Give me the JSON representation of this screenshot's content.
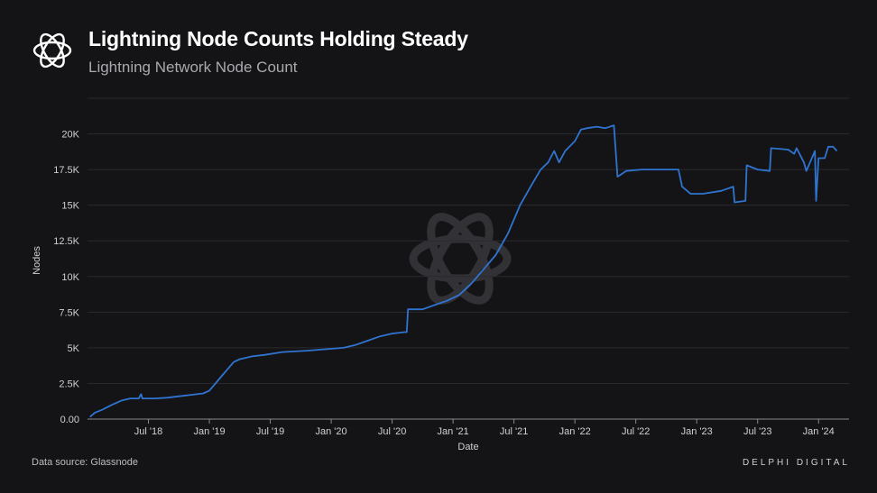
{
  "header": {
    "title": "Lightning Node Counts Holding Steady",
    "subtitle": "Lightning Network Node Count"
  },
  "footer": {
    "source": "Data source: Glassnode",
    "brand": "DELPHI DIGITAL"
  },
  "colors": {
    "line": "#2f74d0",
    "background": "#141416",
    "grid": "#2a2a2e"
  },
  "chart_data": {
    "type": "line",
    "title": "Lightning Network Node Count",
    "xlabel": "Date",
    "ylabel": "Nodes",
    "ylim": [
      0,
      22500
    ],
    "xlim": [
      2018.0,
      2024.25
    ],
    "yticks": [
      0,
      2500,
      5000,
      7500,
      10000,
      12500,
      15000,
      17500,
      20000
    ],
    "ytick_labels": [
      "0.00",
      "2.5K",
      "5K",
      "7.5K",
      "10K",
      "12.5K",
      "15K",
      "17.5K",
      "20K"
    ],
    "xticks": [
      2018.5,
      2019.0,
      2019.5,
      2020.0,
      2020.5,
      2021.0,
      2021.5,
      2022.0,
      2022.5,
      2023.0,
      2023.5,
      2024.0
    ],
    "xtick_labels": [
      "Jul '18",
      "Jan '19",
      "Jul '19",
      "Jan '20",
      "Jul '20",
      "Jan '21",
      "Jul '21",
      "Jan '22",
      "Jul '22",
      "Jan '23",
      "Jul '23",
      "Jan '24"
    ],
    "series": [
      {
        "name": "Lightning Network Node Count",
        "x": [
          2018.02,
          2018.06,
          2018.12,
          2018.2,
          2018.28,
          2018.35,
          2018.42,
          2018.44,
          2018.45,
          2018.55,
          2018.65,
          2018.75,
          2018.85,
          2018.95,
          2019.0,
          2019.05,
          2019.1,
          2019.15,
          2019.2,
          2019.25,
          2019.3,
          2019.35,
          2019.45,
          2019.6,
          2019.8,
          2019.95,
          2020.1,
          2020.2,
          2020.3,
          2020.4,
          2020.5,
          2020.6,
          2020.62,
          2020.63,
          2020.75,
          2020.85,
          2020.95,
          2021.05,
          2021.15,
          2021.25,
          2021.35,
          2021.45,
          2021.55,
          2021.65,
          2021.72,
          2021.78,
          2021.83,
          2021.87,
          2021.92,
          2022.0,
          2022.05,
          2022.1,
          2022.18,
          2022.25,
          2022.32,
          2022.35,
          2022.37,
          2022.42,
          2022.55,
          2022.7,
          2022.8,
          2022.85,
          2022.88,
          2022.95,
          2023.05,
          2023.2,
          2023.3,
          2023.31,
          2023.4,
          2023.41,
          2023.5,
          2023.6,
          2023.61,
          2023.75,
          2023.8,
          2023.82,
          2023.88,
          2023.9,
          2023.97,
          2023.98,
          2024.0,
          2024.05,
          2024.08,
          2024.12,
          2024.15
        ],
        "y": [
          150,
          450,
          650,
          1000,
          1300,
          1450,
          1450,
          1750,
          1450,
          1450,
          1500,
          1600,
          1700,
          1800,
          2000,
          2500,
          3000,
          3500,
          4000,
          4200,
          4300,
          4400,
          4500,
          4700,
          4800,
          4900,
          5000,
          5200,
          5500,
          5800,
          6000,
          6100,
          6100,
          7700,
          7700,
          8000,
          8300,
          8700,
          9500,
          10500,
          11500,
          13000,
          15000,
          16500,
          17500,
          18000,
          18800,
          18000,
          18800,
          19500,
          20300,
          20400,
          20500,
          20400,
          20600,
          17000,
          17100,
          17400,
          17500,
          17500,
          17500,
          17500,
          16300,
          15800,
          15800,
          16000,
          16300,
          15200,
          15300,
          17800,
          17500,
          17400,
          19000,
          18900,
          18600,
          19000,
          18000,
          17400,
          18800,
          15300,
          18300,
          18300,
          19100,
          19100,
          18800
        ]
      }
    ]
  }
}
